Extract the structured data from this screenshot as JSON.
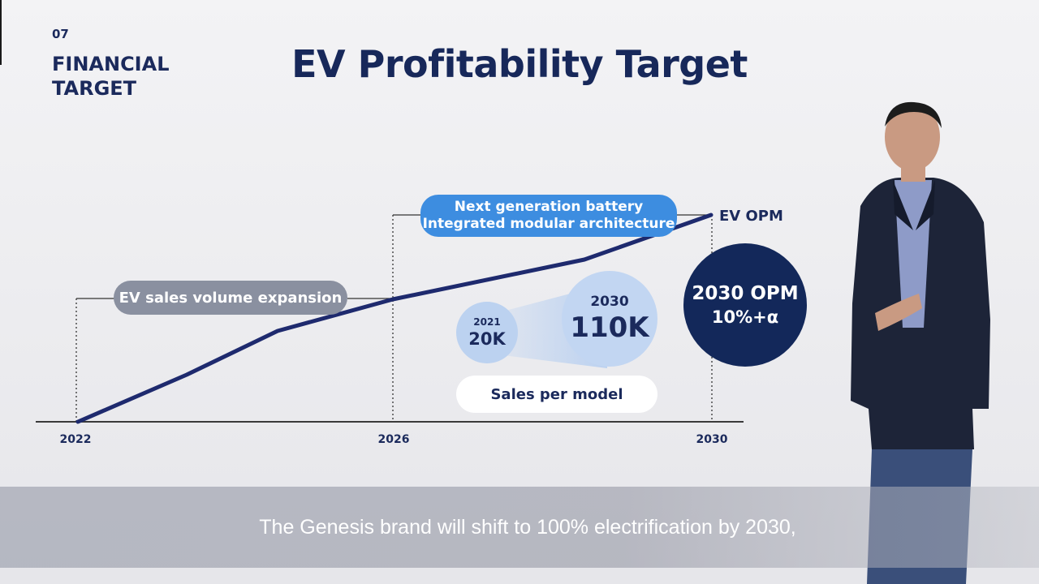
{
  "section": {
    "number": "07",
    "title": "FINANCIAL TARGET"
  },
  "title": "EV Profitability Target",
  "timeline": {
    "years": [
      "2022",
      "2026",
      "2030"
    ],
    "phase1_label": "EV sales volume expansion",
    "phase2_label_line1": "Next generation battery",
    "phase2_label_line2": "Integrated modular architecture",
    "line_label": "EV OPM"
  },
  "sales_per_model": {
    "label": "Sales per model",
    "from": {
      "year": "2021",
      "value": "20K"
    },
    "to": {
      "year": "2030",
      "value": "110K"
    }
  },
  "opm_target": {
    "line1": "2030 OPM",
    "line2": "10%+α"
  },
  "subtitle": "The Genesis brand will shift to 100% electrification by 2030,",
  "colors": {
    "navy": "#13285a",
    "blue_pill": "#3d8de0",
    "gray_pill": "#8a90a0",
    "light_blue": "#c2d6f2"
  }
}
